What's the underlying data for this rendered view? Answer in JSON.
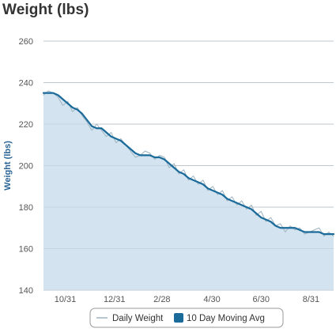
{
  "chart_data": {
    "type": "line",
    "title": "Weight (lbs)",
    "xlabel": "",
    "ylabel": "Weight (lbs)",
    "ylim": [
      140,
      260
    ],
    "yticks": [
      140,
      160,
      180,
      200,
      220,
      240,
      260
    ],
    "xtick_labels": [
      "10/31",
      "12/31",
      "2/28",
      "4/30",
      "6/30",
      "8/31"
    ],
    "grid": true,
    "legend_placement": "bottom",
    "x_start": "2011-10-04",
    "x_end": "2012-09-28",
    "x_ticks": [
      "2011-10-31",
      "2011-12-31",
      "2012-02-28",
      "2012-04-30",
      "2012-06-30",
      "2012-08-31"
    ],
    "series": [
      {
        "name": "Daily Weight",
        "color": "#9fb3c0",
        "style": "thin-line",
        "x": [
          "2011-10-04",
          "2011-10-10",
          "2011-10-16",
          "2011-10-22",
          "2011-10-28",
          "2011-11-03",
          "2011-11-09",
          "2011-11-15",
          "2011-11-21",
          "2011-11-27",
          "2011-12-03",
          "2011-12-09",
          "2011-12-15",
          "2011-12-21",
          "2011-12-27",
          "2012-01-02",
          "2012-01-08",
          "2012-01-14",
          "2012-01-20",
          "2012-01-26",
          "2012-02-01",
          "2012-02-07",
          "2012-02-13",
          "2012-02-19",
          "2012-02-25",
          "2012-03-02",
          "2012-03-08",
          "2012-03-14",
          "2012-03-20",
          "2012-03-26",
          "2012-04-01",
          "2012-04-07",
          "2012-04-13",
          "2012-04-19",
          "2012-04-25",
          "2012-05-01",
          "2012-05-07",
          "2012-05-13",
          "2012-05-19",
          "2012-05-25",
          "2012-05-31",
          "2012-06-06",
          "2012-06-12",
          "2012-06-18",
          "2012-06-24",
          "2012-06-30",
          "2012-07-06",
          "2012-07-12",
          "2012-07-18",
          "2012-07-24",
          "2012-07-30",
          "2012-08-05",
          "2012-08-11",
          "2012-08-17",
          "2012-08-23",
          "2012-08-29",
          "2012-09-04",
          "2012-09-10",
          "2012-09-16",
          "2012-09-22",
          "2012-09-28"
        ],
        "values": [
          234,
          236,
          235,
          233,
          229,
          231,
          226,
          228,
          224,
          221,
          217,
          220,
          217,
          214,
          216,
          211,
          213,
          210,
          207,
          204,
          205,
          207,
          206,
          203,
          205,
          204,
          199,
          201,
          196,
          198,
          193,
          195,
          191,
          193,
          188,
          190,
          186,
          188,
          183,
          185,
          181,
          183,
          179,
          181,
          176,
          178,
          173,
          175,
          171,
          172,
          168,
          171,
          169,
          170,
          167,
          168,
          169,
          170,
          166,
          168,
          166
        ]
      },
      {
        "name": "10 Day Moving Avg",
        "color": "#1a6a9a",
        "style": "thick-line",
        "x": [
          "2011-10-04",
          "2011-10-10",
          "2011-10-16",
          "2011-10-22",
          "2011-10-28",
          "2011-11-03",
          "2011-11-09",
          "2011-11-15",
          "2011-11-21",
          "2011-11-27",
          "2011-12-03",
          "2011-12-09",
          "2011-12-15",
          "2011-12-21",
          "2011-12-27",
          "2012-01-02",
          "2012-01-08",
          "2012-01-14",
          "2012-01-20",
          "2012-01-26",
          "2012-02-01",
          "2012-02-07",
          "2012-02-13",
          "2012-02-19",
          "2012-02-25",
          "2012-03-02",
          "2012-03-08",
          "2012-03-14",
          "2012-03-20",
          "2012-03-26",
          "2012-04-01",
          "2012-04-07",
          "2012-04-13",
          "2012-04-19",
          "2012-04-25",
          "2012-05-01",
          "2012-05-07",
          "2012-05-13",
          "2012-05-19",
          "2012-05-25",
          "2012-05-31",
          "2012-06-06",
          "2012-06-12",
          "2012-06-18",
          "2012-06-24",
          "2012-06-30",
          "2012-07-06",
          "2012-07-12",
          "2012-07-18",
          "2012-07-24",
          "2012-07-30",
          "2012-08-05",
          "2012-08-11",
          "2012-08-17",
          "2012-08-23",
          "2012-08-29",
          "2012-09-04",
          "2012-09-10",
          "2012-09-16",
          "2012-09-22",
          "2012-09-28"
        ],
        "values": [
          235,
          235,
          235,
          234,
          232,
          230,
          228,
          227,
          225,
          222,
          219,
          218,
          218,
          216,
          214,
          213,
          212,
          210,
          208,
          206,
          205,
          205,
          205,
          204,
          204,
          203,
          201,
          199,
          197,
          196,
          194,
          193,
          192,
          191,
          189,
          188,
          187,
          186,
          184,
          183,
          182,
          181,
          180,
          179,
          177,
          175,
          174,
          173,
          171,
          170,
          170,
          170,
          170,
          169,
          168,
          168,
          168,
          168,
          167,
          167,
          167
        ]
      }
    ],
    "area_fill": "#d3e4f0"
  }
}
